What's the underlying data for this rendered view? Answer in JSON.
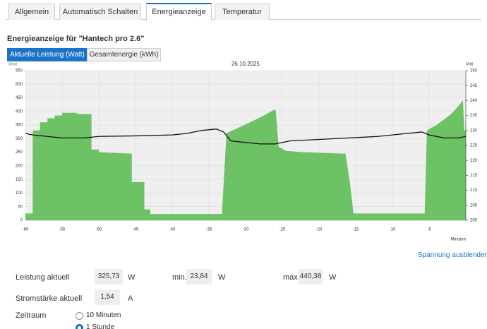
{
  "tabs": [
    "Allgemein",
    "Automatisch Schalten",
    "Energieanzeige",
    "Temperatur"
  ],
  "active_tab": 2,
  "heading": "Energieanzeige für \"Hantech pro 2.6\"",
  "buttons": [
    "Aktuelle Leistung (Watt)",
    "Gesamtenergie (kWh)"
  ],
  "chart": {
    "type": "area",
    "title": "26.10.2025",
    "ylabel": "Watt",
    "y2label": "Volt",
    "xlabel": "Minuten",
    "xlim": [
      -60,
      0
    ],
    "xticks": [
      -60,
      -55,
      -50,
      -45,
      -40,
      -35,
      -30,
      -25,
      -20,
      -15,
      -10,
      -5
    ],
    "ylim": [
      0,
      550
    ],
    "yticks": [
      0,
      50,
      100,
      150,
      200,
      250,
      300,
      350,
      400,
      450,
      500,
      550
    ],
    "y2lim": [
      200,
      250
    ],
    "y2ticks": [
      200,
      205,
      210,
      215,
      220,
      225,
      230,
      235,
      240,
      245,
      250
    ],
    "grid": true,
    "series": [
      {
        "type": "area",
        "color": "#6cc264",
        "x": [
          -60,
          -59,
          -59,
          -58,
          -58,
          -57,
          -57,
          -56,
          -56,
          -55,
          -55,
          -53,
          -53,
          -51,
          -51,
          -50,
          -50,
          -45.5,
          -45.5,
          -43.8,
          -43.8,
          -43,
          -43,
          -33.2,
          -33.2,
          -32.6,
          -31,
          -29,
          -27.5,
          -26.2,
          -25.9,
          -25.5,
          -24.5,
          -22,
          -16.8,
          -16.4,
          -15.8,
          -15.3,
          -5.6,
          -5.3,
          -4,
          -3,
          -2,
          -1,
          -0.4,
          -0.2,
          0
        ],
        "values": [
          25,
          25,
          330,
          330,
          360,
          360,
          375,
          375,
          385,
          385,
          395,
          395,
          390,
          390,
          260,
          260,
          250,
          245,
          140,
          140,
          40,
          40,
          23,
          23,
          40,
          320,
          340,
          365,
          385,
          405,
          405,
          270,
          255,
          250,
          245,
          245,
          140,
          25,
          25,
          330,
          350,
          370,
          390,
          420,
          440,
          330,
          330
        ]
      },
      {
        "type": "line",
        "color": "#111111",
        "axis": "y2",
        "x": [
          -60,
          -59,
          -57,
          -55,
          -52,
          -50,
          -45,
          -40,
          -38,
          -36,
          -34,
          -33,
          -32,
          -30,
          -28,
          -26,
          -24,
          -20,
          -16,
          -12,
          -8,
          -6,
          -5,
          -3,
          -1,
          0
        ],
        "values": [
          229,
          228.5,
          228,
          227.5,
          227.5,
          228,
          228.2,
          228.5,
          229,
          230,
          230.5,
          229.5,
          226.5,
          226,
          225.5,
          225.5,
          226.5,
          227,
          227.5,
          228,
          229,
          229.5,
          228.5,
          227.5,
          227.5,
          228
        ]
      }
    ]
  },
  "toggle_link": "Spannung ausblenden",
  "fields": {
    "power": {
      "label": "Leistung aktuell",
      "value": "325,73",
      "unit": "W"
    },
    "min": {
      "label": "min.",
      "value": "23,84",
      "unit": "W"
    },
    "max": {
      "label": "max.",
      "value": "440,38",
      "unit": "W"
    },
    "current": {
      "label": "Stromstärke aktuell",
      "value": "1,54",
      "unit": "A"
    }
  },
  "period": {
    "label": "Zeitraum",
    "options": [
      "10 Minuten",
      "1 Stunde"
    ],
    "selected": 1
  }
}
